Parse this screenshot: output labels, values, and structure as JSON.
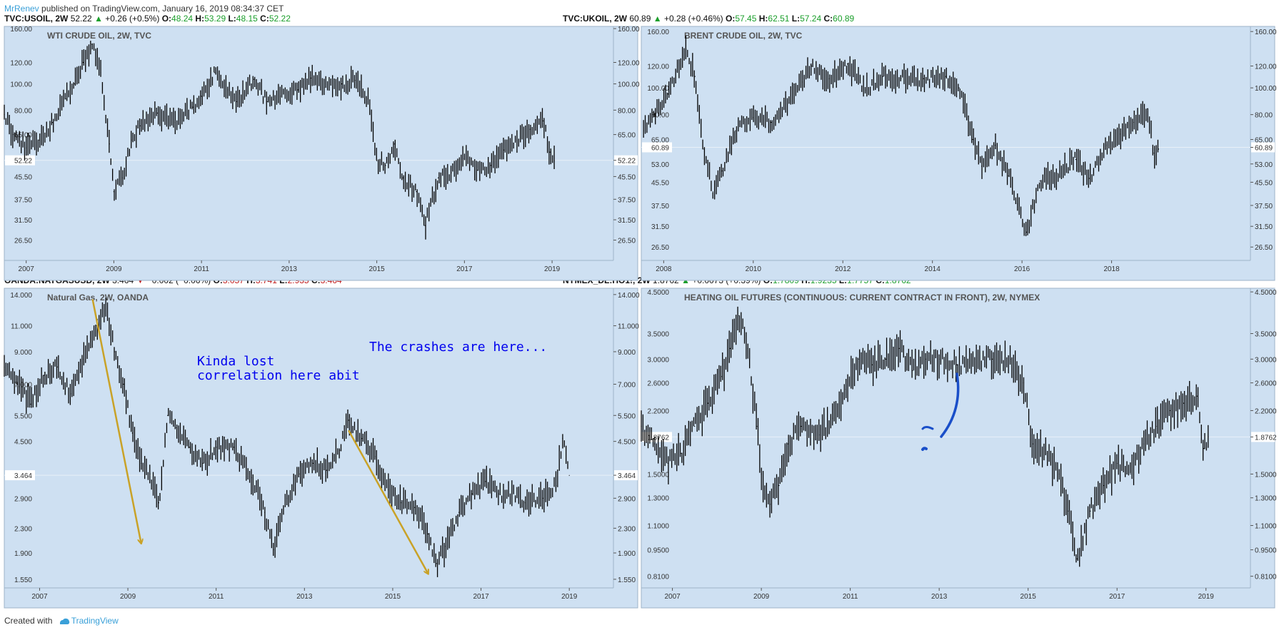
{
  "header": {
    "author": "MrRenev",
    "published_text": "published on TradingView.com, January 16, 2019 08:34:37 CET"
  },
  "footer": {
    "created_with": "Created with",
    "brand": "TradingView"
  },
  "colors": {
    "panel_bg": "#cee0f2",
    "price_line": "#000000",
    "arrow": "#c9a227",
    "annotation_text": "#0000ee",
    "pen_stroke": "#1a4fc9",
    "up": "#1a9e2a",
    "down": "#c01818"
  },
  "panels": [
    {
      "symbol": "TVC:USOIL, 2W",
      "last": "52.22",
      "change": "+0.26 (+0.5%)",
      "direction": "up",
      "o": "48.24",
      "h": "53.29",
      "l": "48.15",
      "c": "52.22",
      "title": "WTI CRUDE OIL, 2W, TVC",
      "price_tag": "52.22",
      "annotations": [],
      "arrows": [],
      "pen_marks": false
    },
    {
      "symbol": "TVC:UKOIL, 2W",
      "last": "60.89",
      "change": "+0.28 (+0.46%)",
      "direction": "up",
      "o": "57.45",
      "h": "62.51",
      "l": "57.24",
      "c": "60.89",
      "title": "BRENT CRUDE OIL, 2W, TVC",
      "price_tag": "60.89",
      "annotations": [],
      "arrows": [],
      "pen_marks": false
    },
    {
      "symbol": "OANDA:NATGASUSD, 2W",
      "last": "3.464",
      "change": "−0.002 (−0.06%)",
      "direction": "down",
      "o": "3.057",
      "h": "3.741",
      "l": "2.935",
      "c": "3.464",
      "title": "Natural Gas, 2W, OANDA",
      "price_tag": "3.464",
      "annotations": [
        "Kinda lost\ncorrelation here abit",
        "The crashes are here..."
      ],
      "arrows": [
        {
          "from": [
            2008.2,
            13.5
          ],
          "to": [
            2009.3,
            2.05
          ]
        },
        {
          "from": [
            2014.0,
            4.9
          ],
          "to": [
            2015.8,
            1.62
          ]
        }
      ],
      "pen_marks": false
    },
    {
      "symbol": "NYMEX_DL:HO1!, 2W",
      "last": "1.8762",
      "change": "+0.0073 (+0.39%)",
      "direction": "up",
      "o": "1.7809",
      "h": "1.9235",
      "l": "1.7757",
      "c": "1.8762",
      "title": "HEATING OIL FUTURES (CONTINUOUS: CURRENT CONTRACT IN FRONT), 2W, NYMEX",
      "price_tag": "1.8762",
      "annotations": [],
      "arrows": [],
      "pen_marks": true
    }
  ],
  "chart_data": [
    {
      "type": "line",
      "title": "WTI CRUDE OIL, 2W, TVC",
      "xlabel": "",
      "ylabel": "",
      "scale": "log",
      "xlim": [
        2006.5,
        2020.4
      ],
      "ylim": [
        22.3,
        163
      ],
      "y_ticks": [
        "160.00",
        "120.00",
        "100.00",
        "80.00",
        "65.00",
        "52.22",
        "45.50",
        "37.50",
        "31.50",
        "26.50"
      ],
      "x_ticks": [
        "2007",
        "2009",
        "2011",
        "2013",
        "2015",
        "2017",
        "2019"
      ],
      "grid": false,
      "x": [
        2006.5,
        2006.7,
        2007.0,
        2007.3,
        2007.6,
        2007.9,
        2008.1,
        2008.3,
        2008.5,
        2008.7,
        2008.9,
        2009.0,
        2009.2,
        2009.4,
        2009.6,
        2010.0,
        2010.4,
        2010.8,
        2011.0,
        2011.3,
        2011.6,
        2011.8,
        2012.2,
        2012.5,
        2012.8,
        2013.2,
        2013.5,
        2013.8,
        2014.2,
        2014.5,
        2014.8,
        2015.0,
        2015.2,
        2015.4,
        2015.6,
        2015.9,
        2016.1,
        2016.4,
        2016.7,
        2017.0,
        2017.3,
        2017.6,
        2017.9,
        2018.2,
        2018.5,
        2018.8,
        2018.95,
        2019.05
      ],
      "values": [
        77,
        65,
        58,
        62,
        72,
        88,
        100,
        120,
        140,
        110,
        60,
        40,
        45,
        62,
        70,
        78,
        72,
        82,
        90,
        110,
        95,
        86,
        104,
        86,
        90,
        95,
        105,
        97,
        100,
        103,
        88,
        52,
        50,
        60,
        45,
        40,
        30,
        45,
        47,
        53,
        48,
        50,
        57,
        62,
        68,
        73,
        56,
        52
      ]
    },
    {
      "type": "line",
      "title": "BRENT CRUDE OIL, 2W, TVC",
      "xlabel": "",
      "ylabel": "",
      "scale": "log",
      "xlim": [
        2007.5,
        2021.1
      ],
      "ylim": [
        23.7,
        167
      ],
      "y_ticks": [
        "160.00",
        "120.00",
        "100.00",
        "80.00",
        "65.00",
        "60.89",
        "53.00",
        "45.50",
        "37.50",
        "31.50",
        "26.50"
      ],
      "x_ticks": [
        "2008",
        "2010",
        "2012",
        "2014",
        "2016",
        "2018"
      ],
      "grid": false,
      "x": [
        2007.55,
        2007.8,
        2008.1,
        2008.3,
        2008.5,
        2008.7,
        2008.9,
        2009.1,
        2009.3,
        2009.6,
        2010.0,
        2010.4,
        2010.8,
        2011.1,
        2011.3,
        2011.7,
        2012.1,
        2012.5,
        2012.9,
        2013.3,
        2013.8,
        2014.3,
        2014.6,
        2014.9,
        2015.1,
        2015.4,
        2015.7,
        2015.9,
        2016.1,
        2016.4,
        2016.8,
        2017.2,
        2017.5,
        2017.9,
        2018.2,
        2018.5,
        2018.8,
        2018.95,
        2019.05
      ],
      "values": [
        70,
        80,
        95,
        115,
        138,
        110,
        60,
        42,
        50,
        70,
        78,
        75,
        88,
        105,
        120,
        108,
        122,
        98,
        110,
        108,
        108,
        110,
        100,
        65,
        52,
        62,
        48,
        38,
        30,
        46,
        49,
        55,
        47,
        62,
        68,
        75,
        84,
        58,
        60
      ]
    },
    {
      "type": "line",
      "title": "Natural Gas, 2W, OANDA",
      "xlabel": "",
      "ylabel": "",
      "scale": "log",
      "xlim": [
        2006.2,
        2020.0
      ],
      "ylim": [
        1.45,
        14.7
      ],
      "y_ticks": [
        "14.000",
        "11.000",
        "9.000",
        "7.000",
        "5.500",
        "4.500",
        "3.464",
        "2.900",
        "2.300",
        "1.900",
        "1.550"
      ],
      "x_ticks": [
        "2007",
        "2009",
        "2011",
        "2013",
        "2015",
        "2017",
        "2019"
      ],
      "grid": false,
      "x": [
        2006.2,
        2006.5,
        2006.8,
        2007.1,
        2007.4,
        2007.7,
        2008.0,
        2008.3,
        2008.5,
        2008.7,
        2008.9,
        2009.1,
        2009.3,
        2009.5,
        2009.7,
        2009.9,
        2010.1,
        2010.4,
        2010.7,
        2011.0,
        2011.4,
        2011.8,
        2012.1,
        2012.3,
        2012.6,
        2012.9,
        2013.2,
        2013.5,
        2013.8,
        2014.0,
        2014.3,
        2014.6,
        2014.9,
        2015.2,
        2015.5,
        2015.8,
        2016.0,
        2016.2,
        2016.5,
        2016.8,
        2017.1,
        2017.4,
        2017.7,
        2018.0,
        2018.4,
        2018.7,
        2018.85,
        2019.0
      ],
      "values": [
        8.0,
        7.0,
        6.0,
        7.5,
        8.0,
        6.5,
        8.5,
        11.0,
        13.0,
        9.0,
        7.0,
        4.8,
        3.8,
        3.5,
        2.8,
        5.5,
        5.0,
        4.3,
        3.8,
        4.3,
        4.3,
        3.4,
        2.6,
        1.95,
        2.9,
        3.5,
        3.8,
        3.6,
        4.2,
        5.3,
        4.6,
        4.0,
        3.1,
        2.8,
        2.7,
        2.2,
        1.75,
        2.0,
        2.6,
        3.0,
        3.3,
        3.0,
        3.0,
        2.8,
        2.9,
        3.2,
        4.6,
        3.46
      ]
    },
    {
      "type": "line",
      "title": "HEATING OIL FUTURES (CONTINUOUS: CURRENT CONTRACT IN FRONT), 2W, NYMEX",
      "xlabel": "",
      "ylabel": "",
      "scale": "log",
      "xlim": [
        2006.3,
        2020.0
      ],
      "ylim": [
        0.755,
        4.6
      ],
      "y_ticks": [
        "4.5000",
        "3.5000",
        "3.0000",
        "2.6000",
        "2.2000",
        "1.8762",
        "1.5000",
        "1.3000",
        "1.1000",
        "0.9500",
        "0.8100"
      ],
      "x_ticks": [
        "2007",
        "2009",
        "2011",
        "2013",
        "2015",
        "2017",
        "2019"
      ],
      "grid": false,
      "x": [
        2006.3,
        2006.6,
        2006.9,
        2007.2,
        2007.5,
        2007.8,
        2008.1,
        2008.3,
        2008.5,
        2008.7,
        2008.9,
        2009.0,
        2009.2,
        2009.4,
        2009.6,
        2009.9,
        2010.3,
        2010.6,
        2010.9,
        2011.2,
        2011.5,
        2011.8,
        2012.1,
        2012.4,
        2012.7,
        2013.0,
        2013.4,
        2013.8,
        2014.2,
        2014.6,
        2014.9,
        2015.1,
        2015.4,
        2015.7,
        2015.9,
        2016.1,
        2016.4,
        2016.7,
        2017.0,
        2017.3,
        2017.6,
        2017.9,
        2018.2,
        2018.5,
        2018.8,
        2018.95,
        2019.05
      ],
      "values": [
        2.0,
        1.8,
        1.6,
        1.7,
        2.0,
        2.3,
        2.7,
        3.2,
        3.9,
        3.2,
        2.0,
        1.5,
        1.25,
        1.4,
        1.8,
        2.0,
        1.9,
        2.1,
        2.5,
        3.0,
        2.9,
        3.0,
        3.2,
        2.8,
        3.0,
        3.0,
        2.9,
        3.0,
        3.0,
        3.0,
        2.6,
        1.8,
        1.7,
        1.5,
        1.2,
        0.9,
        1.2,
        1.4,
        1.6,
        1.5,
        1.8,
        2.0,
        2.2,
        2.3,
        2.4,
        1.75,
        1.88
      ]
    }
  ]
}
